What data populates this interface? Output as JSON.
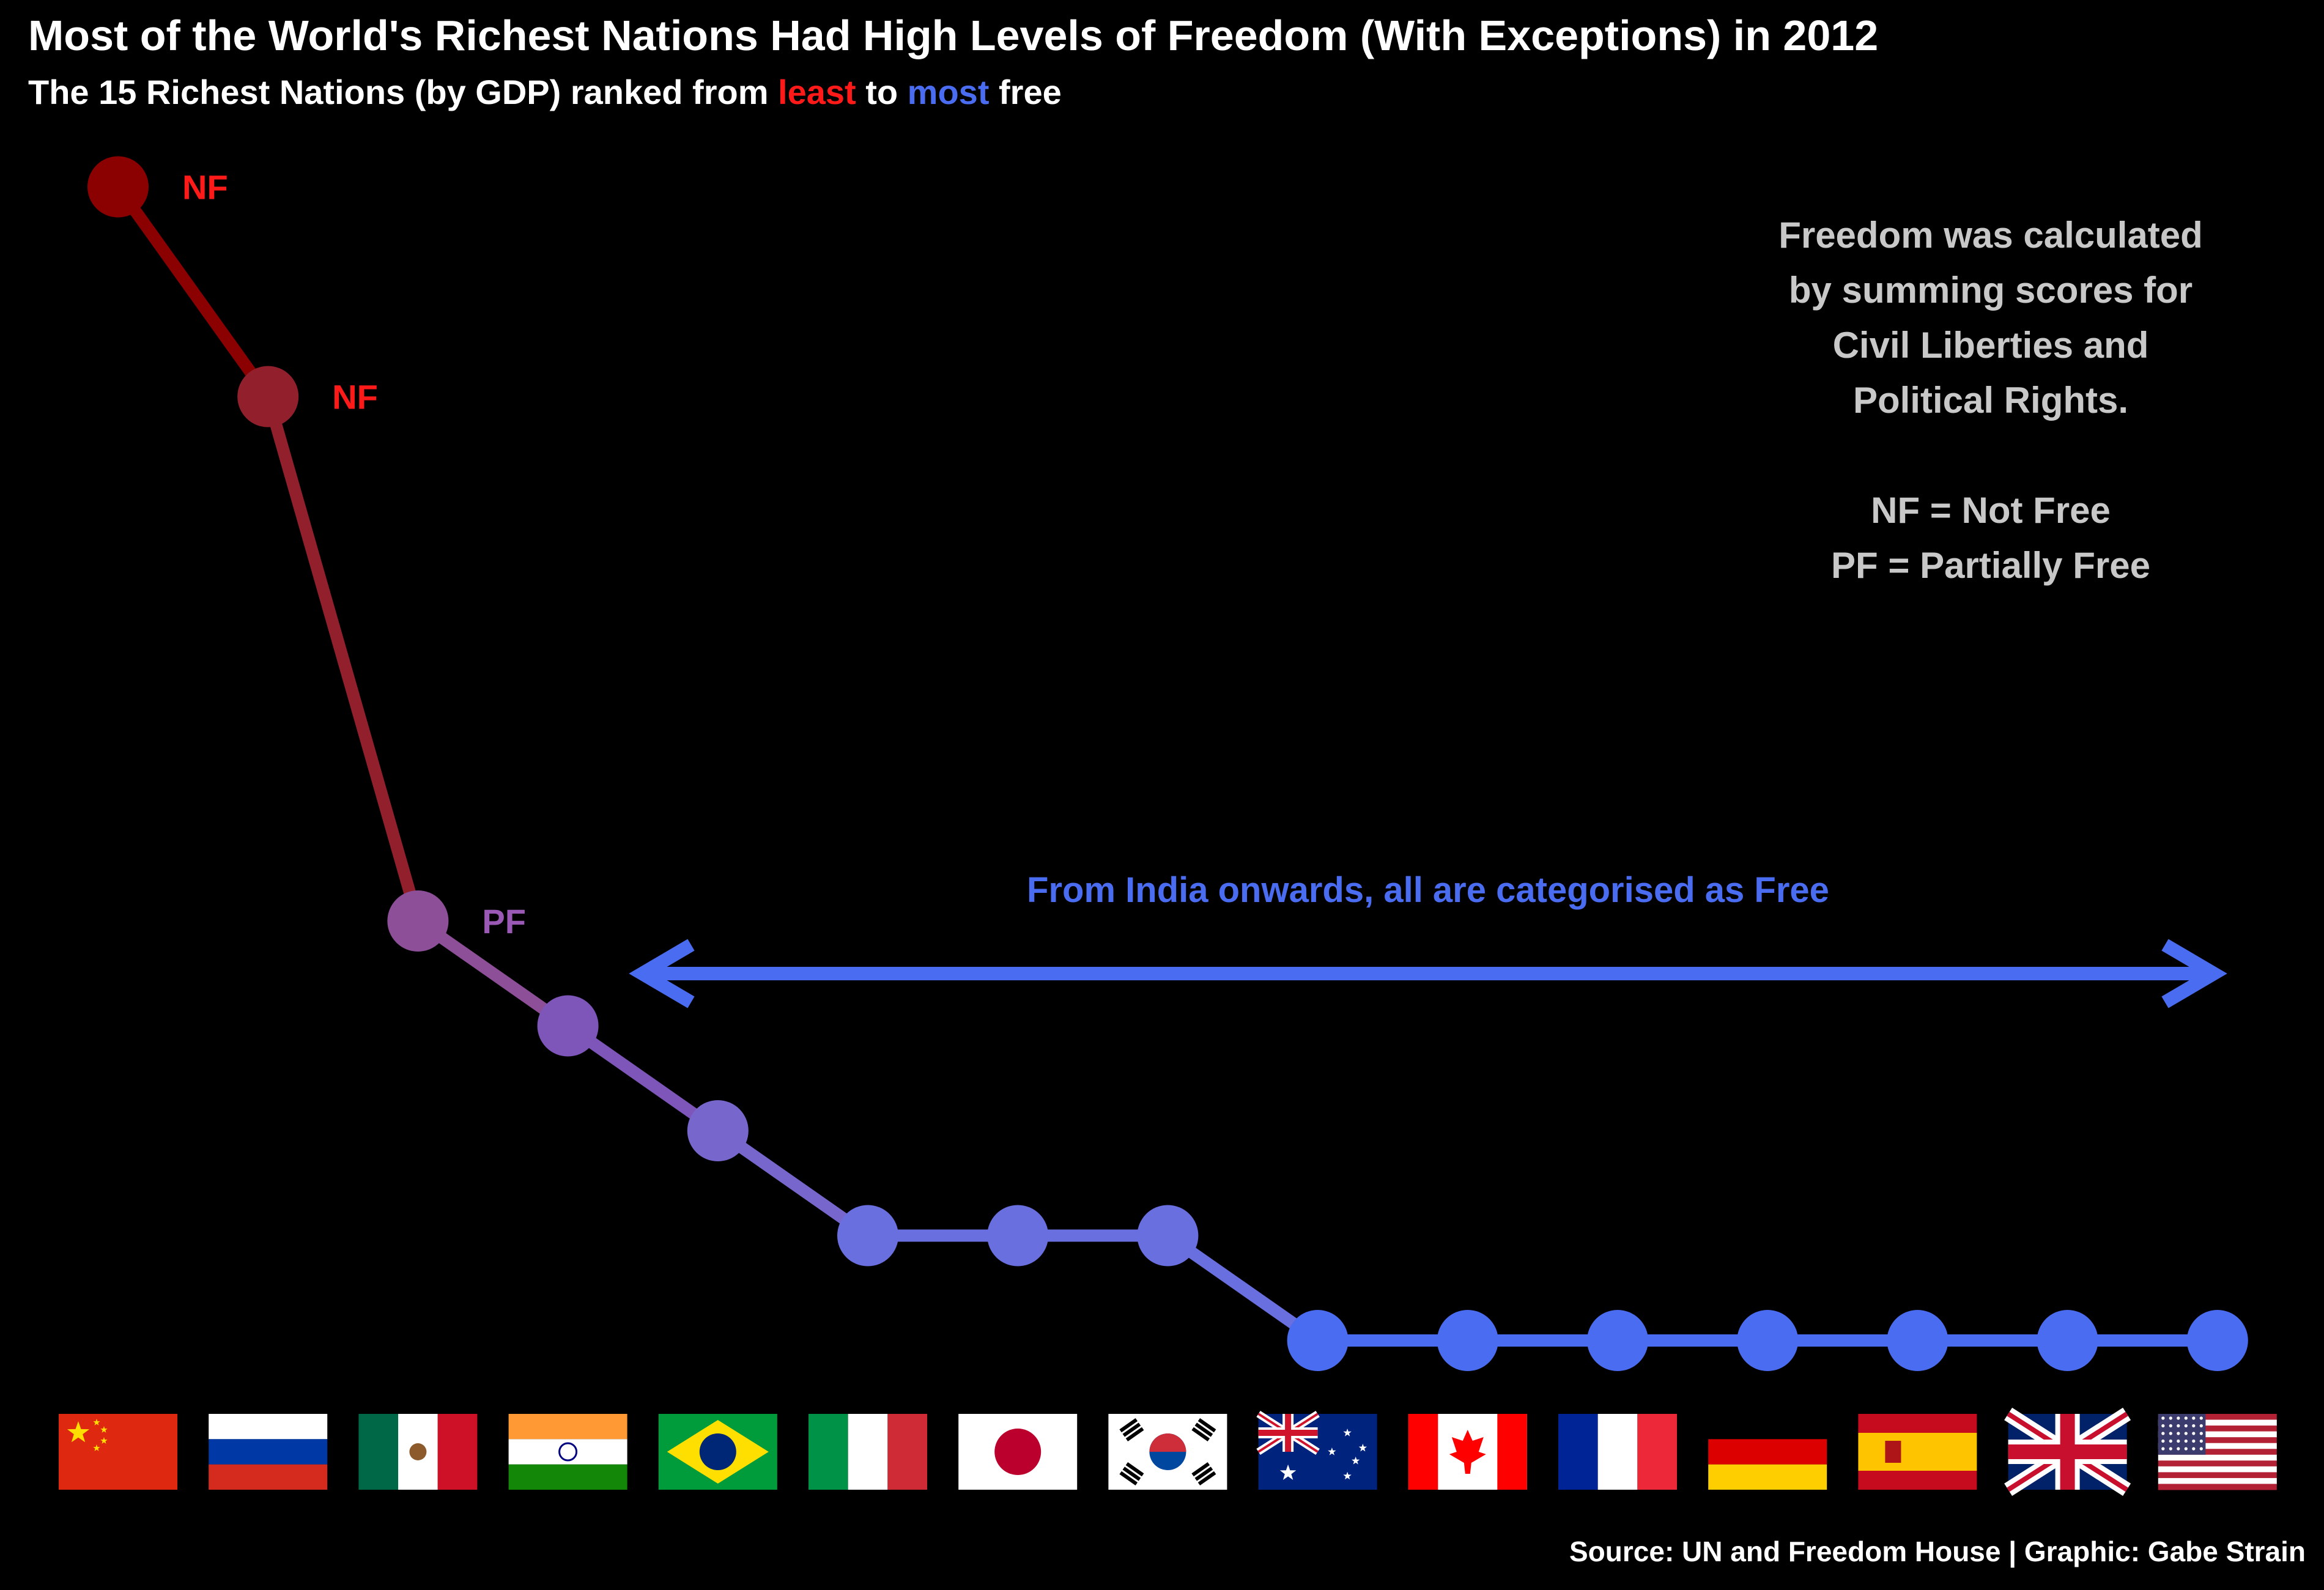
{
  "header": {
    "title": "Most of the World's Richest Nations Had High Levels of Freedom (With Exceptions) in 2012",
    "subtitle_pre": "The 15 Richest Nations (by GDP) ranked from ",
    "subtitle_least": "least",
    "subtitle_mid": " to ",
    "subtitle_most": "most",
    "subtitle_post": " free"
  },
  "note": {
    "lines": [
      "Freedom was calculated",
      "by summing scores for",
      "Civil Liberties and",
      "Political Rights.",
      "",
      "NF = Not Free",
      "PF = Partially Free"
    ]
  },
  "annotation": {
    "text": "From India onwards, all are categorised as Free",
    "color": "#4a6cf0"
  },
  "source": "Source: UN and Freedom House | Graphic: Gabe Strain",
  "chart_data": {
    "type": "line",
    "x": [
      "China",
      "Russia",
      "Mexico",
      "India",
      "Brazil",
      "Italy",
      "Japan",
      "South Korea",
      "Australia",
      "Canada",
      "France",
      "Germany",
      "Spain",
      "United Kingdom",
      "United States"
    ],
    "y": [
      13,
      11,
      6,
      5,
      4,
      3,
      3,
      3,
      2,
      2,
      2,
      2,
      2,
      2,
      2
    ],
    "status_labels": [
      "NF",
      "NF",
      "PF",
      "",
      "",
      "",
      "",
      "",
      "",
      "",
      "",
      "",
      "",
      "",
      ""
    ],
    "point_colors": [
      "#8b0000",
      "#92202c",
      "#8e4f99",
      "#7e55b8",
      "#7766cc",
      "#6a6fe0",
      "#6a6fe0",
      "#6a6fe0",
      "#4a6cf0",
      "#4a6cf0",
      "#4a6cf0",
      "#4a6cf0",
      "#4a6cf0",
      "#4a6cf0",
      "#4a6cf0"
    ],
    "label_colors": [
      "#ff1a1a",
      "#ff1a1a",
      "#9b59b6"
    ],
    "flags": [
      "china",
      "russia",
      "mexico",
      "india",
      "brazil",
      "italy",
      "japan",
      "south-korea",
      "australia",
      "canada",
      "france",
      "germany",
      "spain",
      "united-kingdom",
      "united-states"
    ]
  }
}
